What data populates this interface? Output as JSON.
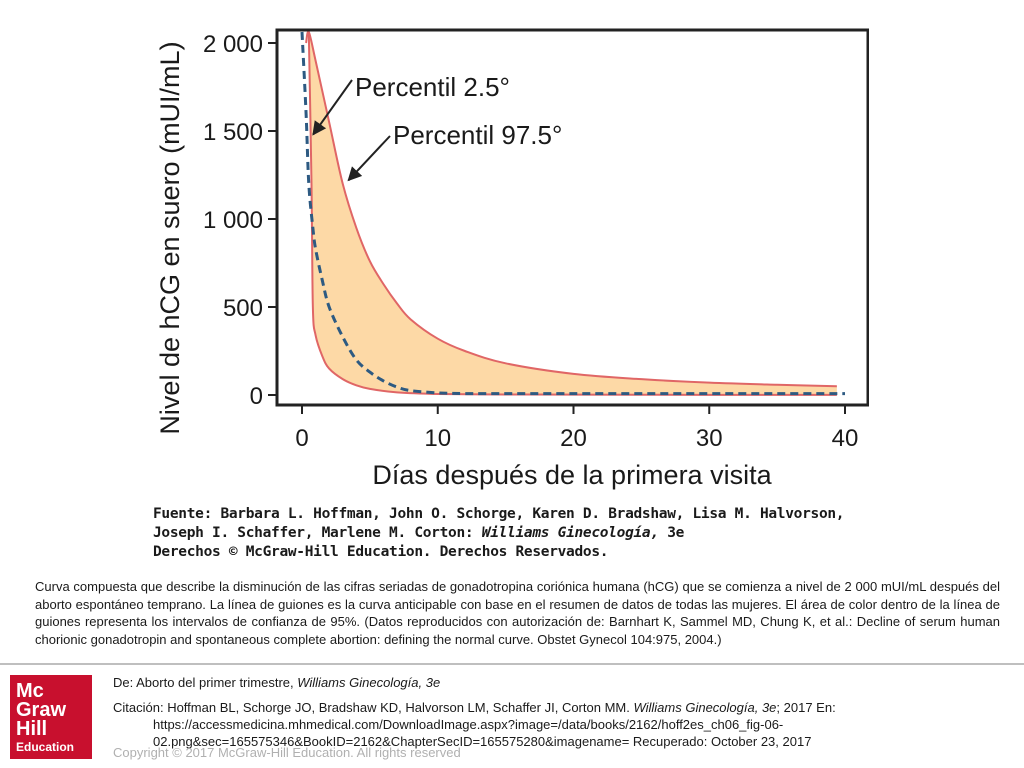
{
  "chart_data": {
    "type": "line",
    "ylabel": "Nivel de hCG en suero (mUI/mL)",
    "xlabel": "Días después de la primera visita",
    "xlim": [
      0,
      40
    ],
    "ylim": [
      0,
      2000
    ],
    "x_ticks": [
      "0",
      "10",
      "20",
      "30",
      "40"
    ],
    "y_ticks": [
      "0",
      "500",
      "1 000",
      "1 500",
      "2 000"
    ],
    "series": [
      {
        "name": "Percentil 97.5°",
        "style": "solid",
        "color": "#e06666",
        "points": [
          [
            0.3,
            2000
          ],
          [
            0.5,
            2100
          ],
          [
            1,
            1900
          ],
          [
            2,
            1550
          ],
          [
            3,
            1200
          ],
          [
            4,
            950
          ],
          [
            5,
            760
          ],
          [
            6,
            630
          ],
          [
            7,
            520
          ],
          [
            8,
            430
          ],
          [
            10,
            320
          ],
          [
            12,
            250
          ],
          [
            15,
            180
          ],
          [
            20,
            120
          ],
          [
            25,
            90
          ],
          [
            30,
            70
          ],
          [
            35,
            58
          ],
          [
            39.4,
            50
          ]
        ]
      },
      {
        "name": "Percentil 2.5°",
        "style": "solid",
        "color": "#e06666",
        "points": [
          [
            0.5,
            2100
          ],
          [
            0.7,
            1200
          ],
          [
            0.8,
            500
          ],
          [
            1,
            340
          ],
          [
            1.5,
            220
          ],
          [
            2,
            150
          ],
          [
            3,
            90
          ],
          [
            4,
            55
          ],
          [
            5,
            35
          ],
          [
            7,
            15
          ],
          [
            10,
            6
          ],
          [
            15,
            3
          ],
          [
            20,
            2
          ],
          [
            30,
            1
          ],
          [
            39.4,
            1
          ]
        ]
      },
      {
        "name": "",
        "style": "dashed",
        "color": "#2d5a82",
        "points": [
          [
            0,
            2100
          ],
          [
            0.3,
            1600
          ],
          [
            0.5,
            1200
          ],
          [
            0.8,
            950
          ],
          [
            1,
            830
          ],
          [
            1.5,
            650
          ],
          [
            2,
            500
          ],
          [
            3,
            330
          ],
          [
            4,
            200
          ],
          [
            5,
            130
          ],
          [
            6,
            80
          ],
          [
            7,
            45
          ],
          [
            8,
            25
          ],
          [
            10,
            12
          ],
          [
            12,
            8
          ],
          [
            15,
            8
          ],
          [
            20,
            8
          ],
          [
            25,
            8
          ],
          [
            30,
            8
          ],
          [
            35,
            8
          ],
          [
            40,
            8
          ]
        ]
      }
    ],
    "band": {
      "between": [
        "Percentil 2.5°",
        "Percentil 97.5°"
      ],
      "color": "#fdd9a6"
    },
    "annotations": [
      {
        "text": "Percentil 2.5°",
        "points_to": [
          0.6,
          1480
        ]
      },
      {
        "text": "Percentil 97.5°",
        "points_to": [
          3.2,
          1220
        ]
      }
    ],
    "grid": false,
    "legend": "none"
  },
  "source": {
    "line1": "Fuente: Barbara L. Hoffman, John O. Schorge, Karen D. Bradshaw, Lisa M. Halvorson,",
    "line2_prefix": "Joseph I. Schaffer, Marlene M. Corton: ",
    "line2_title": "Williams Ginecología,",
    "line2_suffix": " 3e",
    "line3": "Derechos © McGraw-Hill Education. Derechos Reservados."
  },
  "caption": "Curva compuesta que describe la disminución de las cifras seriadas de gonadotropina coriónica humana (hCG) que se comienza a nivel de 2 000 mUI/mL después del aborto espontáneo temprano. La línea de guiones es la curva anticipable con base en el resumen de datos de todas las mujeres. El área de color dentro de la línea de guiones representa los intervalos de confianza de 95%. (Datos reproducidos con autorización de: Barnhart K, Sammel MD, Chung K, et al.: Decline of serum human chorionic gonadotropin and spontaneous complete abortion: defining the normal curve. Obstet Gynecol 104:975, 2004.)",
  "footer": {
    "from_prefix": "De: Aborto del primer trimestre, ",
    "from_book": "Williams Ginecología, 3e",
    "citation_prefix": "Citación: Hoffman BL, Schorge JO, Bradshaw KD, Halvorson LM, Schaffer JI, Corton MM",
    "citation_book": "Williams Ginecología, 3e",
    "citation_suffix": "; 2017 En:",
    "url_line1": "https://accessmedicina.mhmedical.com/DownloadImage.aspx?image=/data/books/2162/hoff2es_ch06_fig-06-",
    "url_line2": "02.png&sec=165575346&BookID=2162&ChapterSecID=165575280&imagename= Recuperado: October 23, 2017",
    "copyright": "Copyright © 2017 McGraw-Hill Education. All rights reserved"
  },
  "logo": {
    "line1": "Mc",
    "line2": "Graw",
    "line3": "Hill",
    "line4": "Education",
    "color": "#c8102e"
  }
}
